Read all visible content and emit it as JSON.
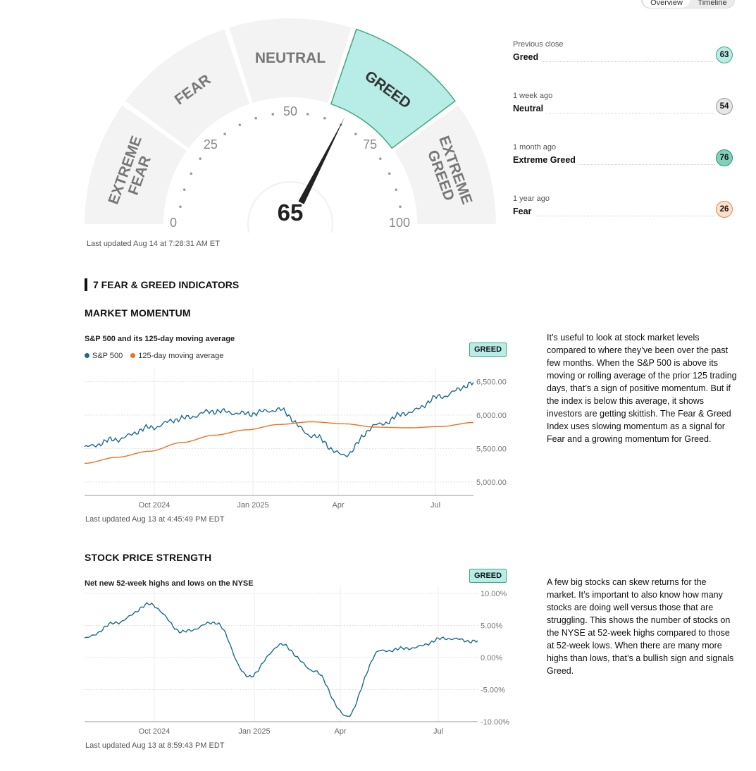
{
  "toggle": {
    "overview": "Overview",
    "timeline": "Timeline"
  },
  "gauge": {
    "value": 65,
    "value_label": "65",
    "segments": [
      "EXTREME FEAR",
      "FEAR",
      "NEUTRAL",
      "GREED",
      "EXTREME GREED"
    ],
    "active_segment": "GREED",
    "ticks": [
      "0",
      "25",
      "50",
      "75",
      "100"
    ],
    "updated": "Last updated Aug 14 at 7:28:31 AM ET",
    "colors": {
      "segment": "#f3f3f3",
      "active_fill": "#b8ece6",
      "active_stroke": "#43a77b",
      "needle": "#222222"
    }
  },
  "history": [
    {
      "label": "Previous close",
      "rating": "Greed",
      "score": "63",
      "bg": "#b8ece6",
      "border": "#43a77b"
    },
    {
      "label": "1 week ago",
      "rating": "Neutral",
      "score": "54",
      "bg": "#e6e6e6",
      "border": "#9a9a9a"
    },
    {
      "label": "1 month ago",
      "rating": "Extreme Greed",
      "score": "76",
      "bg": "#7fd1bb",
      "border": "#2e8f6e"
    },
    {
      "label": "1 year ago",
      "rating": "Fear",
      "score": "26",
      "bg": "#fde0cc",
      "border": "#e0884a"
    }
  ],
  "indicators_title": "7 FEAR & GREED INDICATORS",
  "momentum": {
    "heading": "MARKET MOMENTUM",
    "subtitle": "S&P 500 and its 125-day moving average",
    "legend": [
      "S&P 500",
      "125-day moving average"
    ],
    "badge": "GREED",
    "description": "It’s useful to look at stock market levels compared to where they’ve been over the past few months. When the S&P 500 is above its moving or rolling average of the prior 125 trading days, that’s a sign of positive momentum. But if the index is below this average, it shows investors are getting skittish. The Fear & Greed Index uses slowing momentum as a signal for Fear and a growing momentum for Greed.",
    "updated": "Last updated Aug 13 at 4:45:49 PM EDT"
  },
  "strength": {
    "heading": "STOCK PRICE STRENGTH",
    "subtitle": "Net new 52-week highs and lows on the NYSE",
    "badge": "GREED",
    "description": "A few big stocks can skew returns for the market. It’s important to also know how many stocks are doing well versus those that are struggling. This shows the number of stocks on the NYSE at 52-week highs compared to those at 52-week lows. When there are many more highs than lows, that’s a bullish sign and signals Greed.",
    "updated": "Last updated Aug 13 at 8:59:43 PM EDT"
  },
  "chart_data": [
    {
      "type": "line",
      "x_tick_labels": [
        "Oct 2024",
        "Jan 2025",
        "Apr",
        "Jul"
      ],
      "y_tick_labels": [
        "6,500.00",
        "6,000.00",
        "5,500.00",
        "5,000.00"
      ],
      "ylim": [
        4800,
        6600
      ],
      "grid": true,
      "x": [
        "Aug 2024",
        "Sep 2024",
        "Oct 2024",
        "Nov 2024",
        "Dec 2024",
        "Jan 2025",
        "Feb 2025",
        "Mar 2025",
        "Apr 2025",
        "May 2025",
        "Jun 2025",
        "Jul 2025",
        "Aug 2025"
      ],
      "series": [
        {
          "name": "S&P 500",
          "color": "#1a6a8f",
          "values": [
            5520,
            5640,
            5810,
            5950,
            6060,
            6020,
            6080,
            5700,
            5400,
            5850,
            6040,
            6280,
            6470
          ]
        },
        {
          "name": "125-day moving average",
          "color": "#e8731c",
          "values": [
            5280,
            5370,
            5460,
            5590,
            5700,
            5780,
            5860,
            5900,
            5870,
            5820,
            5810,
            5830,
            5890
          ]
        }
      ]
    },
    {
      "type": "line",
      "x_tick_labels": [
        "Oct 2024",
        "Jan 2025",
        "Apr",
        "Jul"
      ],
      "y_tick_labels": [
        "10.00%",
        "5.00%",
        "0.00%",
        "-5.00%",
        "-10.00%"
      ],
      "ylim": [
        -10,
        10
      ],
      "grid": true,
      "x": [
        "Aug 2024",
        "Sep 2024",
        "Oct 2024",
        "Nov 2024",
        "Dec 2024",
        "Jan 2025",
        "Feb 2025",
        "Mar 2025",
        "Apr 2025",
        "May 2025",
        "Jun 2025",
        "Jul 2025",
        "Aug 2025"
      ],
      "series": [
        {
          "color": "#1a6a8f",
          "values": [
            3.0,
            5.5,
            8.3,
            4.0,
            5.5,
            -3.0,
            2.0,
            -2.0,
            -9.2,
            1.0,
            1.5,
            3.0,
            2.5
          ]
        }
      ]
    }
  ]
}
